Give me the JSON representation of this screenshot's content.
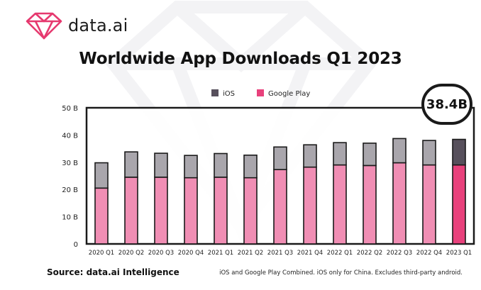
{
  "brand": {
    "name": "data.ai",
    "accent": "#e6396f"
  },
  "title": "Worldwide App Downloads Q1 2023",
  "callout": "38.4B",
  "source": "Source: data.ai Intelligence",
  "footnote": "iOS and Google Play Combined. iOS only for China. Excludes third-party android.",
  "chart_data": {
    "type": "bar",
    "stacked": true,
    "title": "Worldwide App Downloads Q1 2023",
    "xlabel": "",
    "ylabel": "",
    "ylim": [
      0,
      50
    ],
    "yticks": [
      "0",
      "10 B",
      "20 B",
      "30 B",
      "40 B",
      "50 B"
    ],
    "categories": [
      "2020 Q1",
      "2020 Q2",
      "2020 Q3",
      "2020 Q4",
      "2021 Q1",
      "2021 Q2",
      "2021 Q3",
      "2021 Q4",
      "2022 Q1",
      "2022 Q2",
      "2022 Q3",
      "2022 Q4",
      "2023 Q1"
    ],
    "series": [
      {
        "name": "Google Play",
        "color": "#f08eb4",
        "highlight_color": "#e8417c",
        "values": [
          20.5,
          24.5,
          24.5,
          24.3,
          24.5,
          24.3,
          27.3,
          28.2,
          29.0,
          28.8,
          29.8,
          29.0,
          29.0
        ]
      },
      {
        "name": "iOS",
        "color": "#a9a6ac",
        "highlight_color": "#57505c",
        "values": [
          9.3,
          9.3,
          8.8,
          8.2,
          8.7,
          8.3,
          8.3,
          8.2,
          8.2,
          8.2,
          8.9,
          9.0,
          9.4
        ]
      }
    ],
    "legend": [
      "iOS",
      "Google Play"
    ],
    "legend_position": "top-left",
    "highlight_category": "2023 Q1"
  }
}
